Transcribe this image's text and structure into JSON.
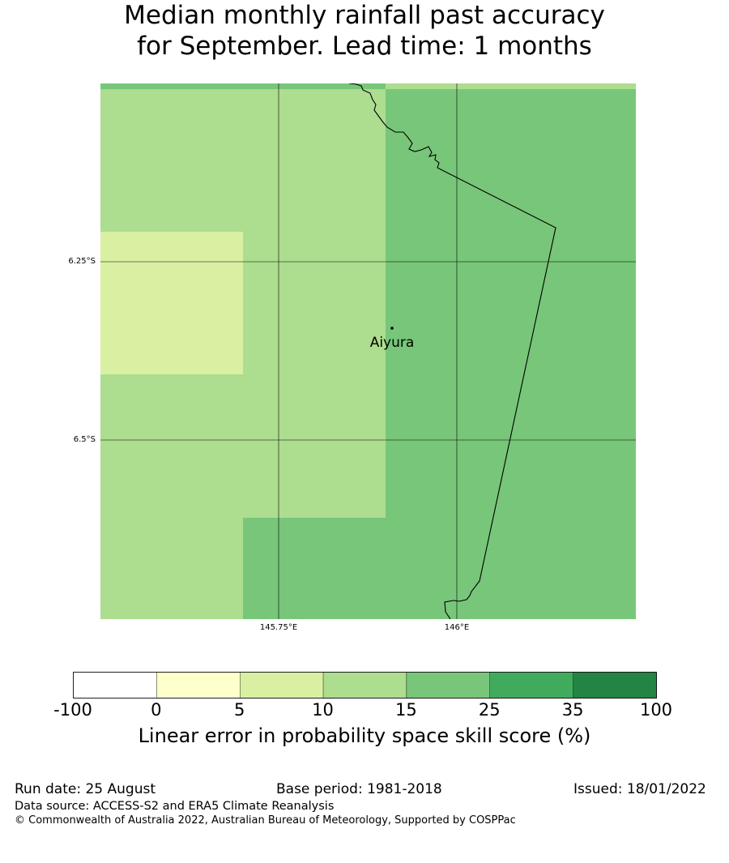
{
  "title": {
    "line1": "Median monthly rainfall past accuracy",
    "line2": "for September. Lead time: 1 months"
  },
  "map": {
    "lat_labels": [
      "6.25°S",
      "6.5°S"
    ],
    "lon_labels": [
      "145.75°E",
      "146°E"
    ],
    "place_name": "Aiyura",
    "colors": {
      "cat_5_10": "#d9f0a3",
      "cat_10_15": "#addd8e",
      "cat_15_25": "#78c679"
    }
  },
  "colorbar": {
    "ticks": [
      "-100",
      "0",
      "5",
      "10",
      "15",
      "25",
      "35",
      "100"
    ],
    "colors": [
      "#ffffff",
      "#ffffcc",
      "#d9f0a3",
      "#addd8e",
      "#78c679",
      "#41ab5d",
      "#238443"
    ],
    "label": "Linear error in probability space skill score (%)"
  },
  "footer": {
    "run_date": "Run date: 25 August",
    "base_period": "Base period: 1981-2018",
    "issued": "Issued: 18/01/2022",
    "data_source": "Data source: ACCESS-S2 and ERA5 Climate Reanalysis",
    "copyright": "© Commonwealth of Australia 2022, Australian Bureau of Meteorology, Supported by COSPPac"
  }
}
